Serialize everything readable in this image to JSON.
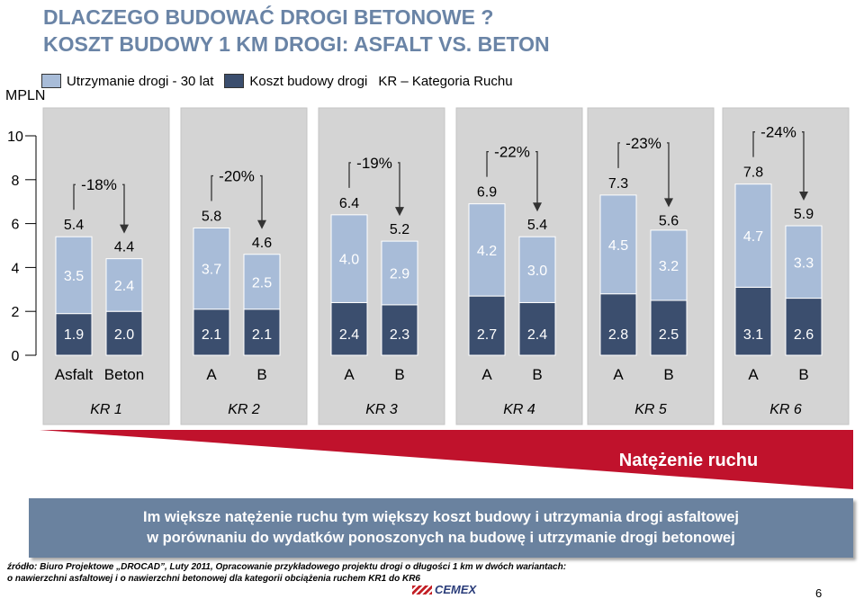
{
  "title_lines": [
    "DLACZEGO BUDOWAĆ DROGI BETONOWE ?",
    "KOSZT BUDOWY 1 KM DROGI: ASFALT VS. BETON"
  ],
  "legend": {
    "maintenance": "Utrzymanie drogi - 30 lat",
    "construction": "Koszt budowy drogi",
    "kr": "KR – Kategoria Ruchu"
  },
  "ylabel": "MPLN",
  "traffic_label": "Natężenie ruchu",
  "bottom_text": [
    "Im większe natężenie ruchu tym większy koszt budowy i utrzymania drogi asfaltowej",
    "w porównaniu do wydatków ponoszonych na budowę i utrzymanie drogi betonowej"
  ],
  "source_lines": [
    "źródło: Biuro Projektowe „DROCAD”, Luty 2011, Opracowanie przykładowego projektu drogi o długości 1 km w dwóch wariantach:",
    "o nawierzchni asfaltowej i o nawierzchni betonowej dla kategorii obciążenia  ruchem KR1 do KR6"
  ],
  "logo_text": "CEMEX",
  "page_number": "6",
  "colors": {
    "maintenance": "#a8bcd8",
    "construction": "#3b4e6e",
    "panel": "#d4d4d4",
    "title": "#6a84a6",
    "arrow": "#c0122c",
    "box": "#6a829f"
  },
  "chart_data": {
    "type": "bar",
    "stacked": true,
    "ylim": [
      0,
      10
    ],
    "yticks": [
      "0",
      "2",
      "4",
      "6",
      "8",
      "10"
    ],
    "groups": [
      {
        "name": "KR 1",
        "change": "-18%",
        "bars": [
          {
            "label": "Asfalt",
            "construction": "1.9",
            "maintenance": "3.5",
            "total": "5.4"
          },
          {
            "label": "Beton",
            "construction": "2.0",
            "maintenance": "2.4",
            "total": "4.4"
          }
        ]
      },
      {
        "name": "KR 2",
        "change": "-20%",
        "bars": [
          {
            "label": "A",
            "construction": "2.1",
            "maintenance": "3.7",
            "total": "5.8"
          },
          {
            "label": "B",
            "construction": "2.1",
            "maintenance": "2.5",
            "total": "4.6"
          }
        ]
      },
      {
        "name": "KR 3",
        "change": "-19%",
        "bars": [
          {
            "label": "A",
            "construction": "2.4",
            "maintenance": "4.0",
            "total": "6.4"
          },
          {
            "label": "B",
            "construction": "2.3",
            "maintenance": "2.9",
            "total": "5.2"
          }
        ]
      },
      {
        "name": "KR 4",
        "change": "-22%",
        "bars": [
          {
            "label": "A",
            "construction": "2.7",
            "maintenance": "4.2",
            "total": "6.9"
          },
          {
            "label": "B",
            "construction": "2.4",
            "maintenance": "3.0",
            "total": "5.4"
          }
        ]
      },
      {
        "name": "KR 5",
        "change": "-23%",
        "bars": [
          {
            "label": "A",
            "construction": "2.8",
            "maintenance": "4.5",
            "total": "7.3"
          },
          {
            "label": "B",
            "construction": "2.5",
            "maintenance": "3.2",
            "total": "5.6"
          }
        ]
      },
      {
        "name": "KR 6",
        "change": "-24%",
        "bars": [
          {
            "label": "A",
            "construction": "3.1",
            "maintenance": "4.7",
            "total": "7.8"
          },
          {
            "label": "B",
            "construction": "2.6",
            "maintenance": "3.3",
            "total": "5.9"
          }
        ]
      }
    ]
  }
}
